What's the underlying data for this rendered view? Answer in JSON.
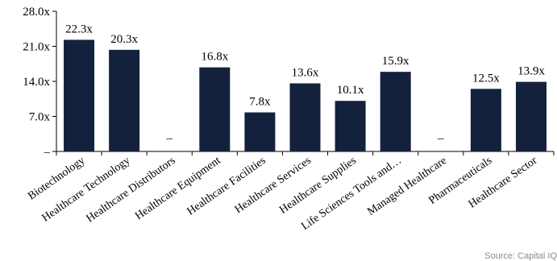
{
  "chart_data": {
    "type": "bar",
    "categories": [
      "Biotechnology",
      "Healthcare Technology",
      "Healthcare Distributors",
      "Healthcare Equipment",
      "Healthcare Facilities",
      "Healthcare Services",
      "Healthcare Supplies",
      "Life Sciences Tools and…",
      "Managed Healthcare",
      "Pharmaceuticals",
      "Healthcare Sector"
    ],
    "values": [
      22.3,
      20.3,
      null,
      16.8,
      7.8,
      13.6,
      10.1,
      15.9,
      null,
      12.5,
      13.9
    ],
    "data_labels": [
      "22.3x",
      "20.3x",
      "–",
      "16.8x",
      "7.8x",
      "13.6x",
      "10.1x",
      "15.9x",
      "–",
      "12.5x",
      "13.9x"
    ],
    "ylim": [
      0,
      28
    ],
    "yticks": [
      0,
      7,
      14,
      21,
      28
    ],
    "ytick_labels": [
      "–",
      "7.0x",
      "14.0x",
      "21.0x",
      "28.0x"
    ],
    "grid": false,
    "bar_color": "#14213d"
  },
  "footer": {
    "source_note": "Source: Capital IQ"
  }
}
